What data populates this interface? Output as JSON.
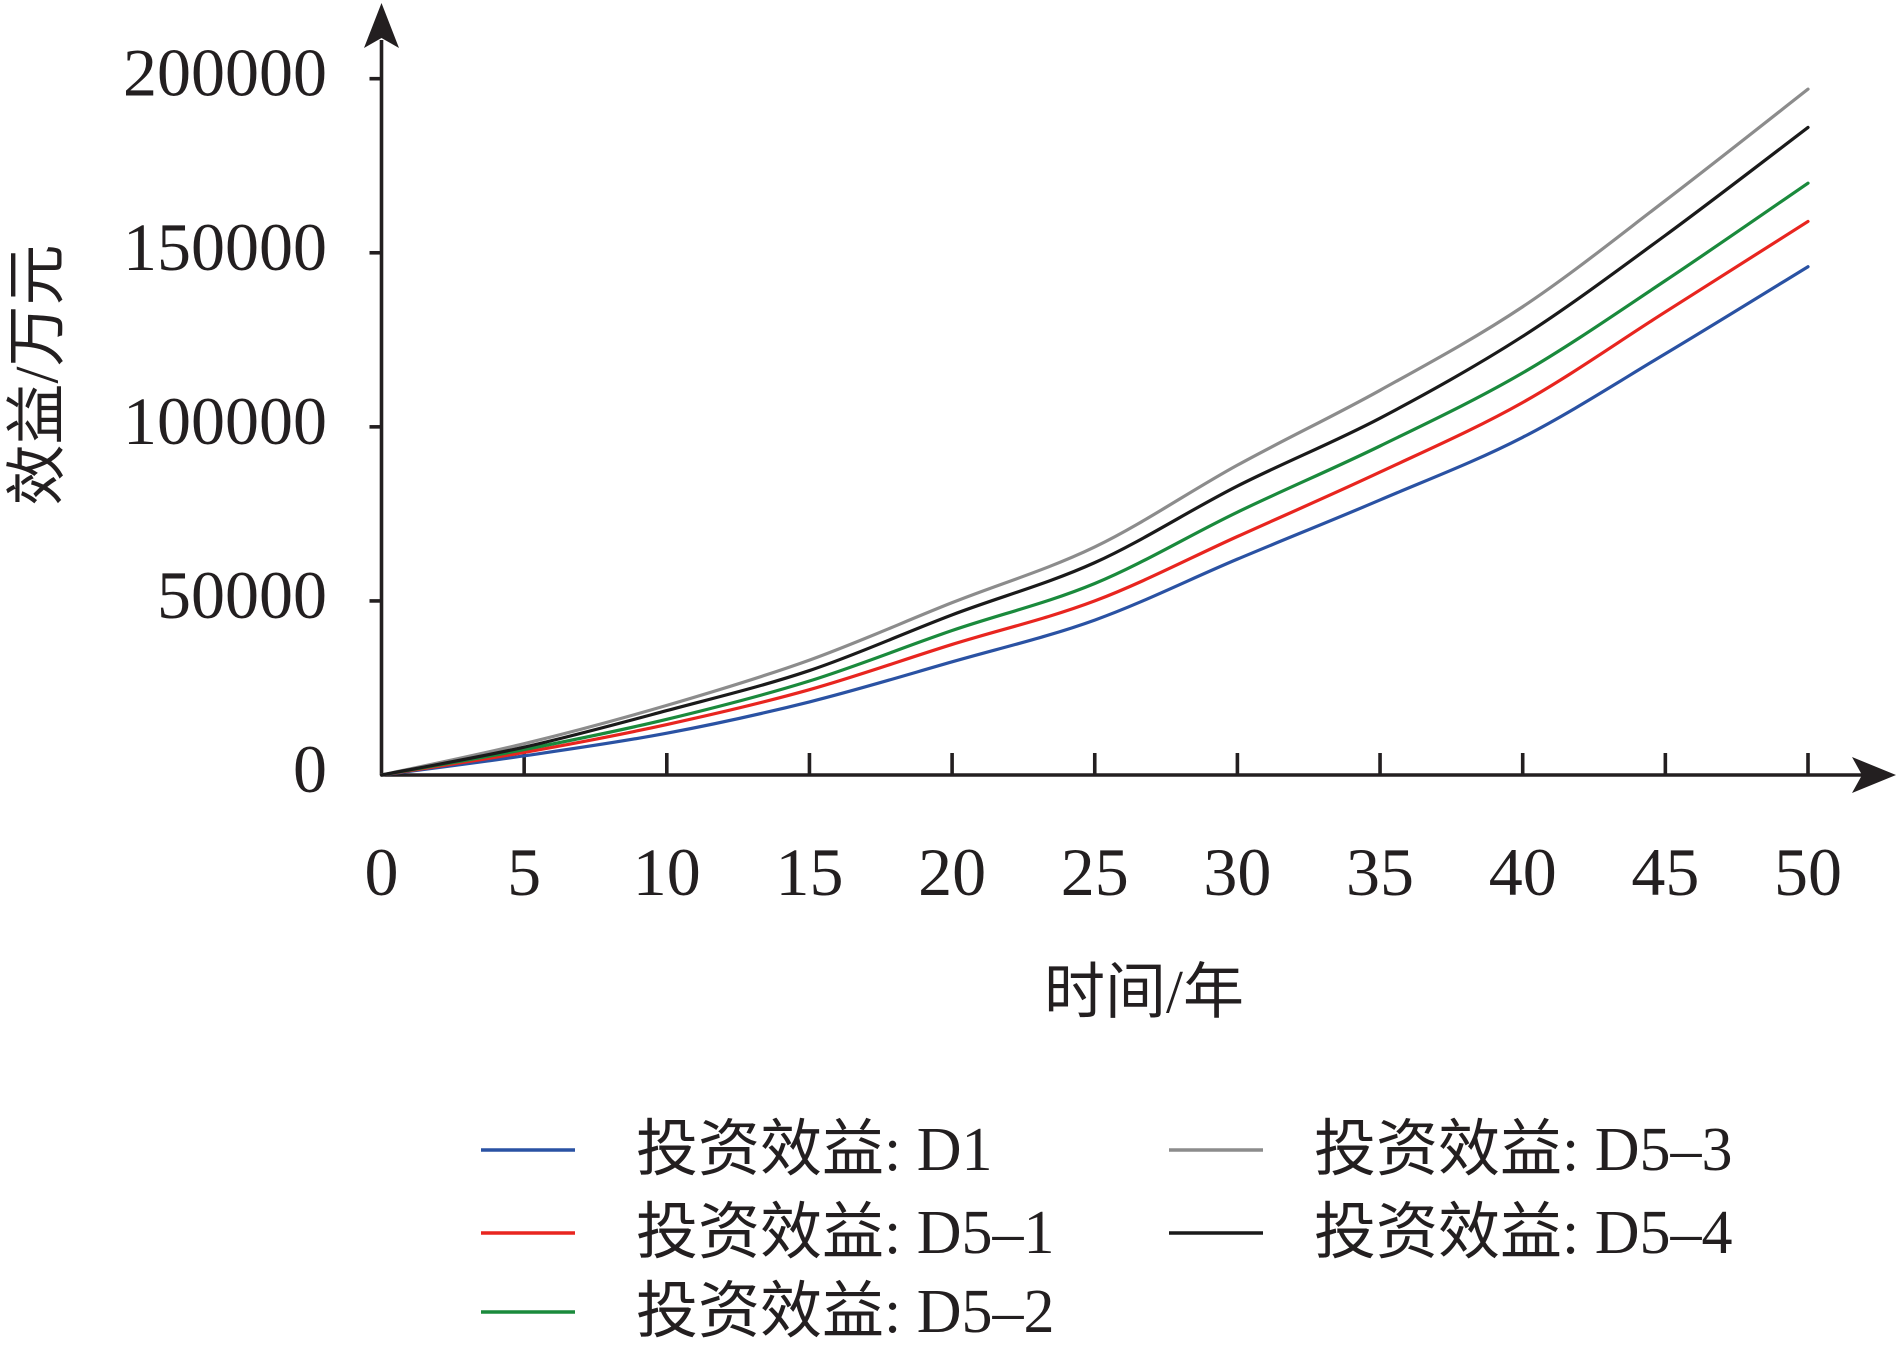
{
  "chart_data": {
    "type": "line",
    "xlabel": "时间/年",
    "ylabel": "效益/万元",
    "xlim": [
      0,
      50
    ],
    "ylim": [
      0,
      200000
    ],
    "xticks": [
      0,
      5,
      10,
      15,
      20,
      25,
      30,
      35,
      40,
      45,
      50
    ],
    "yticks": [
      0,
      50000,
      100000,
      150000,
      200000
    ],
    "grid": false,
    "axis_color": "#231f20",
    "legend": {
      "position": "bottom",
      "columns": 2
    },
    "x": [
      0,
      5,
      10,
      15,
      20,
      25,
      30,
      35,
      40,
      45,
      50
    ],
    "series": [
      {
        "name": "投资效益: D1",
        "color": "#2a52a3",
        "values": [
          0,
          5500,
          12000,
          21000,
          32500,
          44500,
          62000,
          79000,
          97000,
          121000,
          146000
        ]
      },
      {
        "name": "投资效益: D5–1",
        "color": "#e8251f",
        "values": [
          0,
          6500,
          14500,
          24500,
          37500,
          50000,
          68500,
          87000,
          107000,
          133000,
          159000
        ]
      },
      {
        "name": "投资效益: D5–2",
        "color": "#1a8a3c",
        "values": [
          0,
          7300,
          16000,
          27000,
          41500,
          55000,
          75500,
          94500,
          115500,
          142000,
          170000
        ]
      },
      {
        "name": "投资效益: D5–3",
        "color": "#8c8c8c",
        "values": [
          0,
          9000,
          20000,
          33000,
          49500,
          65500,
          89000,
          110500,
          134500,
          165000,
          197000
        ]
      },
      {
        "name": "投资效益: D5–4",
        "color": "#1a1a1a",
        "values": [
          0,
          8000,
          18500,
          30000,
          46000,
          61000,
          83000,
          102500,
          126000,
          155000,
          186000
        ]
      }
    ]
  }
}
